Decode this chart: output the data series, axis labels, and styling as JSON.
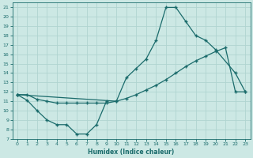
{
  "xlabel": "Humidex (Indice chaleur)",
  "background_color": "#cce8e4",
  "grid_color": "#b0d4d0",
  "line_color": "#1a6b6b",
  "xlim": [
    -0.5,
    23.5
  ],
  "ylim": [
    7,
    21.5
  ],
  "yticks": [
    7,
    8,
    9,
    10,
    11,
    12,
    13,
    14,
    15,
    16,
    17,
    18,
    19,
    20,
    21
  ],
  "xticks": [
    0,
    1,
    2,
    3,
    4,
    5,
    6,
    7,
    8,
    9,
    10,
    11,
    12,
    13,
    14,
    15,
    16,
    17,
    18,
    19,
    20,
    21,
    22,
    23
  ],
  "line1_x": [
    0,
    1,
    2,
    3,
    4,
    5,
    6,
    7,
    8,
    9
  ],
  "line1_y": [
    11.7,
    11.1,
    10.0,
    9.0,
    8.5,
    8.5,
    7.5,
    7.5,
    8.5,
    11.0
  ],
  "line2_x": [
    0,
    1,
    2,
    3,
    4,
    5,
    6,
    7,
    8,
    9,
    10,
    11,
    12,
    13,
    14,
    15,
    16,
    17,
    18,
    19,
    20,
    21,
    22,
    23
  ],
  "line2_y": [
    11.7,
    11.7,
    11.2,
    11.0,
    10.8,
    10.8,
    10.8,
    10.8,
    10.8,
    10.8,
    11.0,
    11.3,
    11.7,
    12.2,
    12.7,
    13.3,
    14.0,
    14.7,
    15.3,
    15.8,
    16.3,
    16.7,
    12.0,
    12.0
  ],
  "line3_x": [
    0,
    10,
    11,
    12,
    13,
    14,
    15,
    16,
    17,
    18,
    19,
    20,
    22,
    23
  ],
  "line3_y": [
    11.7,
    11.0,
    13.5,
    14.5,
    15.5,
    17.5,
    21.0,
    21.0,
    19.5,
    18.0,
    17.5,
    16.5,
    14.0,
    12.0
  ]
}
